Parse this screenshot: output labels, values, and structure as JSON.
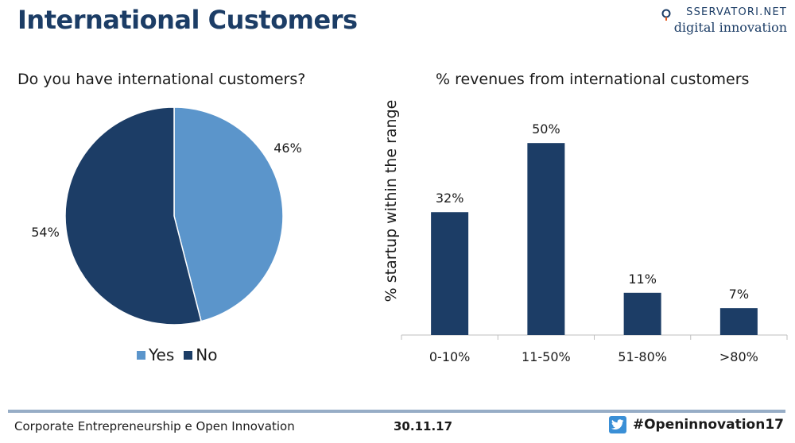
{
  "title": "International Customers",
  "logo": {
    "top": "SSERVATORI.NET",
    "bottom": "digital innovation"
  },
  "colors": {
    "dark": "#1c3d66",
    "light": "#5b95cb",
    "accent": "#1c3d66"
  },
  "chart_data": [
    {
      "type": "pie",
      "title": "Do you have international customers?",
      "labels": [
        "Yes",
        "No"
      ],
      "values": [
        46,
        54
      ],
      "data_labels": [
        "46%",
        "54%"
      ],
      "legend": [
        "Yes",
        "No"
      ],
      "legend_position": "bottom"
    },
    {
      "type": "bar",
      "title": "% revenues from international customers",
      "categories": [
        "0-10%",
        "11-50%",
        "51-80%",
        ">80%"
      ],
      "values": [
        32,
        50,
        11,
        7
      ],
      "data_labels": [
        "32%",
        "50%",
        "11%",
        "7%"
      ],
      "ylabel": "% startup within the range",
      "xlabel": "",
      "ylim": [
        0,
        55
      ],
      "grid": false
    }
  ],
  "footer": {
    "left": "Corporate Entrepreneurship e Open Innovation",
    "date": "30.11.17",
    "hashtag": "#Openinnovation17"
  }
}
